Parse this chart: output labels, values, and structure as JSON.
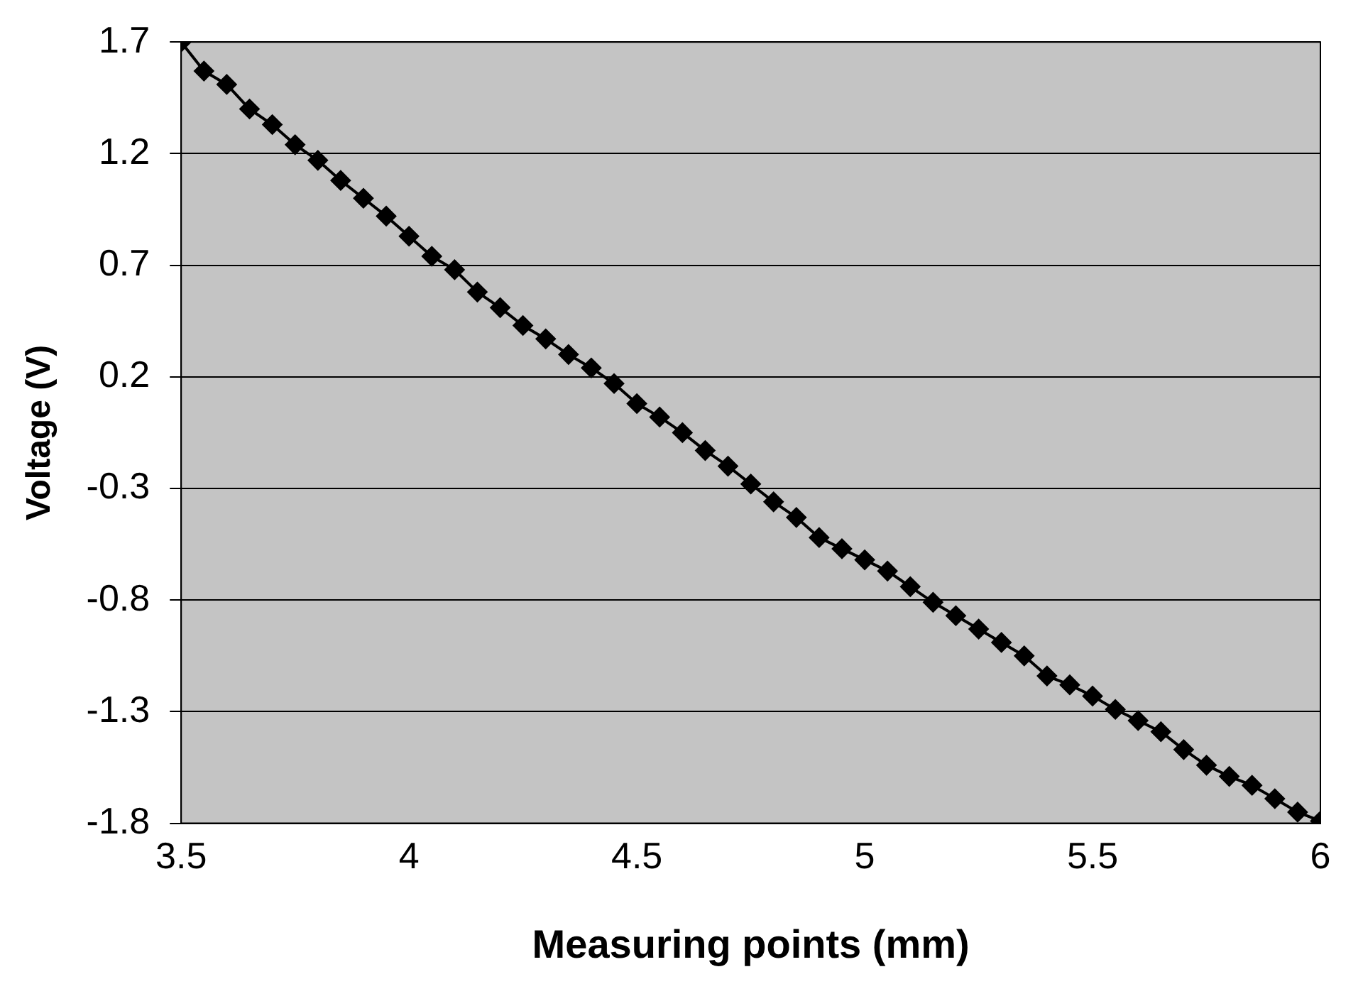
{
  "chart_data": {
    "type": "line",
    "xlabel": "Measuring points (mm)",
    "ylabel": "Voltage (V)",
    "x": [
      3.5,
      3.55,
      3.6,
      3.65,
      3.7,
      3.75,
      3.8,
      3.85,
      3.9,
      3.95,
      4.0,
      4.05,
      4.1,
      4.15,
      4.2,
      4.25,
      4.3,
      4.35,
      4.4,
      4.45,
      4.5,
      4.55,
      4.6,
      4.65,
      4.7,
      4.75,
      4.8,
      4.85,
      4.9,
      4.95,
      5.0,
      5.05,
      5.1,
      5.15,
      5.2,
      5.25,
      5.3,
      5.35,
      5.4,
      5.45,
      5.5,
      5.55,
      5.6,
      5.65,
      5.7,
      5.75,
      5.8,
      5.85,
      5.9,
      5.95,
      6.0
    ],
    "series": [
      {
        "color": "#000000",
        "values": [
          1.7,
          1.57,
          1.51,
          1.4,
          1.33,
          1.24,
          1.17,
          1.08,
          1.0,
          0.92,
          0.83,
          0.74,
          0.68,
          0.58,
          0.51,
          0.43,
          0.37,
          0.3,
          0.24,
          0.17,
          0.08,
          0.02,
          -0.05,
          -0.13,
          -0.2,
          -0.28,
          -0.36,
          -0.43,
          -0.52,
          -0.57,
          -0.62,
          -0.67,
          -0.74,
          -0.81,
          -0.87,
          -0.93,
          -0.99,
          -1.05,
          -1.14,
          -1.18,
          -1.23,
          -1.29,
          -1.34,
          -1.39,
          -1.47,
          -1.54,
          -1.59,
          -1.63,
          -1.69,
          -1.75,
          -1.79
        ]
      }
    ],
    "xlim": [
      3.5,
      6
    ],
    "xticks": [
      3.5,
      4,
      4.5,
      5,
      5.5,
      6
    ],
    "ylim": [
      -1.8,
      1.7
    ],
    "yticks": [
      -1.8,
      -1.3,
      -0.8,
      -0.3,
      0.2,
      0.7,
      1.2,
      1.7
    ],
    "grid": "y",
    "legend": false,
    "marker": "diamond",
    "line_style": "solid"
  }
}
